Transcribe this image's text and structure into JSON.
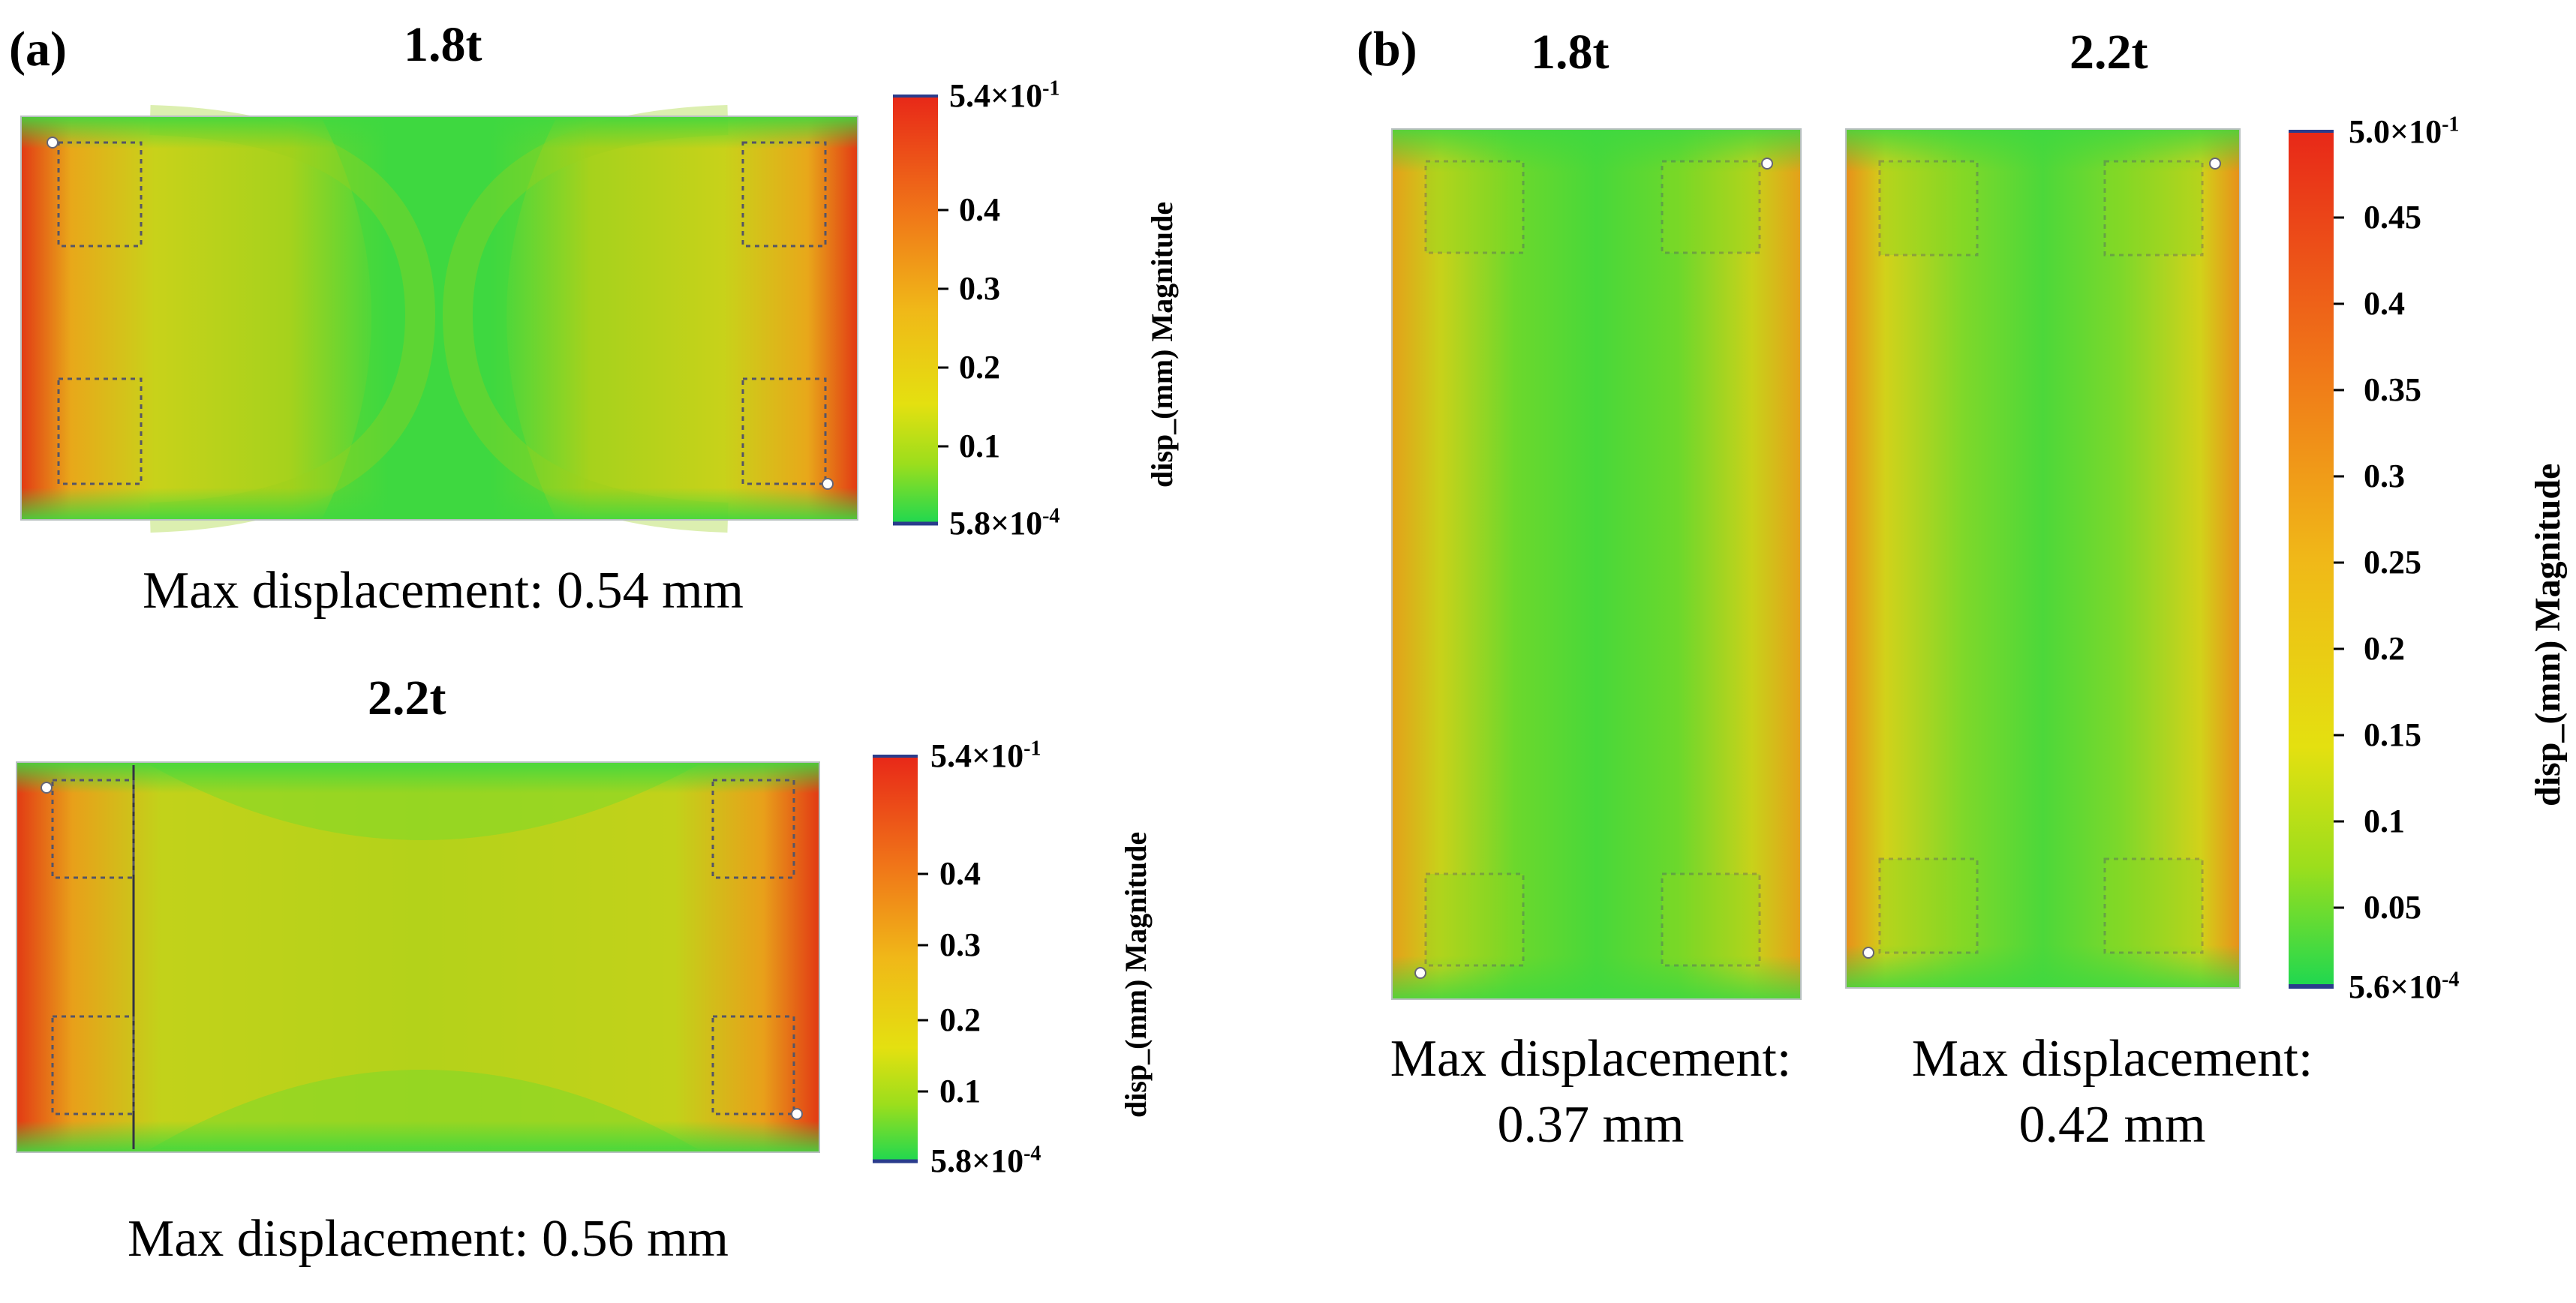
{
  "panel_a": {
    "label": "(a)",
    "top": {
      "title": "1.8t",
      "caption": "Max displacement: 0.54 mm",
      "colorbar": {
        "max_label": "5.4×10",
        "max_exp": "-1",
        "min_label": "5.8×10",
        "min_exp": "-4",
        "ticks": [
          "0.4",
          "0.3",
          "0.2",
          "0.1"
        ],
        "axis_label": "disp_(mm) Magnitude"
      }
    },
    "bottom": {
      "title": "2.2t",
      "caption": "Max displacement: 0.56 mm",
      "colorbar": {
        "max_label": "5.4×10",
        "max_exp": "-1",
        "min_label": "5.8×10",
        "min_exp": "-4",
        "ticks": [
          "0.4",
          "0.3",
          "0.2",
          "0.1"
        ],
        "axis_label": "disp_(mm) Magnitude"
      }
    }
  },
  "panel_b": {
    "label": "(b)",
    "left": {
      "title": "1.8t",
      "caption_line1": "Max displacement:",
      "caption_line2": "0.37 mm"
    },
    "right": {
      "title": "2.2t",
      "caption_line1": "Max displacement:",
      "caption_line2": "0.42 mm"
    },
    "colorbar": {
      "max_label": "5.0×10",
      "max_exp": "-1",
      "min_label": "5.6×10",
      "min_exp": "-4",
      "ticks": [
        "0.45",
        "0.4",
        "0.35",
        "0.3",
        "0.25",
        "0.2",
        "0.15",
        "0.1",
        "0.05"
      ],
      "axis_label": "disp_(mm) Magnitude"
    }
  },
  "colors": {
    "low": "#1fd850",
    "mid_green": "#7fd21e",
    "yellow_green": "#bcd21c",
    "yellow": "#e4e010",
    "orange": "#f0a818",
    "red": "#e82818",
    "min_line": "#2a3c8c"
  }
}
